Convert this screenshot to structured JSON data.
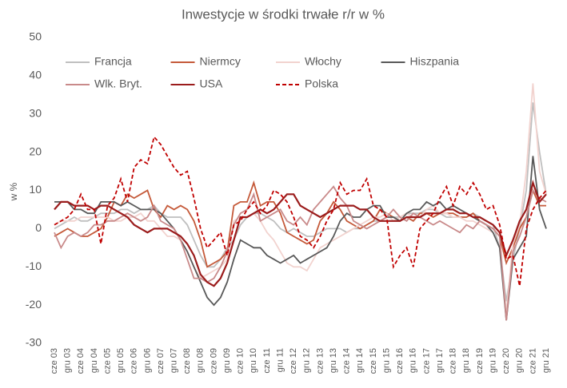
{
  "chart_data": {
    "type": "line",
    "title": "Inwestycje w środki trwałe r/r w %",
    "ylabel": "w %",
    "categories": [
      "cze 03",
      null,
      "gru 03",
      null,
      "cze 04",
      null,
      "gru 04",
      null,
      "cze 05",
      null,
      "gru 05",
      null,
      "cze 06",
      null,
      "gru 06",
      null,
      "cze 07",
      null,
      "gru 07",
      null,
      "cze 08",
      null,
      "gru 08",
      null,
      "cze 09",
      null,
      "gru 09",
      null,
      "cze 10",
      null,
      "gru 10",
      null,
      "cze 11",
      null,
      "gru 11",
      null,
      "cze 12",
      null,
      "gru 12",
      null,
      "cze 13",
      null,
      "gru 13",
      null,
      "cze 14",
      null,
      "gru 14",
      null,
      "cze 15",
      null,
      "gru 15",
      null,
      "cze 16",
      null,
      "gru 16",
      null,
      "cze 17",
      null,
      "gru 17",
      null,
      "cze 18",
      null,
      "gru 18",
      null,
      "cze 19",
      null,
      "gru 19",
      null,
      "cze 20",
      null,
      "gru 20",
      null,
      "cze 21",
      null,
      "gru 21"
    ],
    "ylim": [
      -30,
      50
    ],
    "yticks": [
      -30,
      -20,
      -10,
      0,
      10,
      20,
      30,
      40,
      50
    ],
    "grid": false,
    "series": [
      {
        "name": "Francja",
        "color": "#bfbfbf",
        "style": "solid",
        "values": [
          0,
          1,
          2,
          3,
          2,
          2,
          3,
          4,
          4,
          4,
          5,
          5,
          4,
          5,
          5,
          6,
          4,
          3,
          3,
          3,
          1,
          -3,
          -7,
          -10,
          -10,
          -8,
          -5,
          -3,
          1,
          3,
          4,
          4,
          3,
          2,
          0,
          -1,
          0,
          -1,
          -2,
          -2,
          -1,
          0,
          0,
          0,
          -1,
          0,
          0,
          1,
          2,
          2,
          3,
          3,
          3,
          4,
          4,
          4,
          5,
          5,
          4,
          3,
          3,
          3,
          3,
          4,
          3,
          2,
          1,
          -5,
          -19,
          -8,
          0,
          10,
          33,
          20,
          9
        ]
      },
      {
        "name": "Niermcy",
        "color": "#c55a3a",
        "style": "solid",
        "values": [
          -2,
          -1,
          0,
          -1,
          -2,
          -2,
          -1,
          0,
          3,
          7,
          6,
          9,
          8,
          9,
          10,
          5,
          3,
          6,
          5,
          6,
          5,
          2,
          -3,
          -10,
          -9,
          -8,
          -6,
          6,
          7,
          7,
          12,
          6,
          7,
          7,
          4,
          -1,
          -2,
          -3,
          -4,
          -3,
          2,
          4,
          7,
          5,
          2,
          1,
          0,
          1,
          2,
          5,
          4,
          3,
          2,
          3,
          2,
          4,
          4,
          3,
          4,
          4,
          4,
          3,
          3,
          4,
          2,
          1,
          0,
          -2,
          -9,
          -5,
          0,
          3,
          10,
          6,
          6
        ]
      },
      {
        "name": "Włochy",
        "color": "#f2d3cf",
        "style": "solid",
        "values": [
          1,
          2,
          2,
          2,
          3,
          3,
          3,
          3,
          3,
          2,
          2,
          3,
          3,
          4,
          2,
          2,
          0,
          -2,
          -2,
          -3,
          -6,
          -10,
          -13,
          -12,
          -11,
          -10,
          -8,
          2,
          3,
          3,
          4,
          2,
          -1,
          -3,
          -6,
          -9,
          -10,
          -10,
          -11,
          -8,
          -5,
          -4,
          -3,
          -2,
          -1,
          0,
          1,
          2,
          3,
          3,
          4,
          2,
          3,
          4,
          3,
          3,
          5,
          6,
          4,
          4,
          3,
          3,
          2,
          2,
          1,
          0,
          -1,
          -5,
          -22,
          -4,
          1,
          15,
          38,
          15,
          9
        ]
      },
      {
        "name": "Hiszpania",
        "color": "#595959",
        "style": "solid",
        "values": [
          7,
          7,
          7,
          5,
          5,
          4,
          4,
          7,
          7,
          7,
          6,
          7,
          6,
          5,
          5,
          5,
          4,
          2,
          0,
          -3,
          -6,
          -10,
          -14,
          -18,
          -20,
          -18,
          -14,
          -8,
          -3,
          -4,
          -5,
          -5,
          -7,
          -8,
          -9,
          -8,
          -7,
          -9,
          -8,
          -7,
          -6,
          -5,
          -2,
          2,
          4,
          3,
          3,
          5,
          6,
          6,
          3,
          3,
          2,
          4,
          5,
          5,
          7,
          6,
          7,
          5,
          6,
          5,
          4,
          3,
          2,
          1,
          -1,
          -5,
          -24,
          -8,
          -5,
          -2,
          19,
          5,
          0
        ]
      },
      {
        "name": "Wlk. Bryt.",
        "color": "#c98a8a",
        "style": "solid",
        "values": [
          -1,
          -5,
          -2,
          -1,
          -2,
          -1,
          1,
          1,
          2,
          2,
          3,
          4,
          3,
          2,
          3,
          6,
          2,
          1,
          0,
          -3,
          -8,
          -13,
          -13,
          -14,
          -13,
          -10,
          -6,
          1,
          4,
          5,
          9,
          2,
          3,
          4,
          5,
          2,
          1,
          3,
          1,
          5,
          7,
          9,
          11,
          8,
          6,
          2,
          1,
          0,
          1,
          2,
          3,
          5,
          3,
          2,
          4,
          3,
          2,
          1,
          2,
          1,
          0,
          -1,
          1,
          0,
          2,
          1,
          0,
          -2,
          -24,
          -6,
          -2,
          3,
          10,
          8,
          7
        ]
      },
      {
        "name": "USA",
        "color": "#9b1c1c",
        "style": "solid",
        "values": [
          5,
          7,
          7,
          6,
          6,
          6,
          5,
          6,
          6,
          5,
          4,
          3,
          1,
          0,
          -1,
          0,
          0,
          0,
          -1,
          -2,
          -4,
          -7,
          -12,
          -14,
          -15,
          -13,
          -9,
          -3,
          3,
          3,
          4,
          5,
          4,
          5,
          7,
          9,
          9,
          6,
          5,
          4,
          3,
          4,
          5,
          6,
          6,
          6,
          5,
          5,
          3,
          2,
          2,
          2,
          2,
          3,
          3,
          3,
          4,
          4,
          4,
          5,
          5,
          4,
          4,
          3,
          3,
          2,
          1,
          -1,
          -7,
          -3,
          2,
          5,
          12,
          7,
          9
        ]
      },
      {
        "name": "Polska",
        "color": "#c00000",
        "style": "dashed",
        "values": [
          1,
          2,
          3,
          5,
          9,
          5,
          5,
          -4,
          6,
          8,
          13,
          7,
          16,
          18,
          17,
          24,
          22,
          19,
          16,
          14,
          15,
          8,
          0,
          -5,
          -3,
          -1,
          -7,
          1,
          2,
          5,
          7,
          4,
          6,
          10,
          9,
          7,
          3,
          -2,
          -3,
          -5,
          -2,
          2,
          5,
          12,
          9,
          10,
          10,
          13,
          6,
          5,
          3,
          -10,
          -7,
          -5,
          -10,
          0,
          2,
          4,
          8,
          11,
          6,
          11,
          9,
          12,
          9,
          5,
          6,
          1,
          -8,
          -7,
          -15,
          0,
          5,
          8,
          10
        ]
      }
    ]
  }
}
